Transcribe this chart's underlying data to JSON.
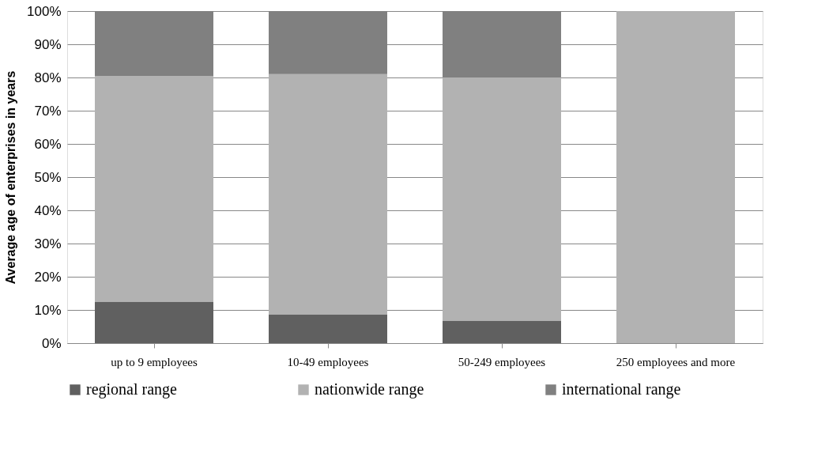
{
  "chart_data": {
    "type": "bar",
    "stacked": true,
    "ylabel": "Average age of enterprises in years",
    "categories": [
      "up to 9 employees",
      "10-49 employees",
      "50-249 employees",
      "250 employees and more"
    ],
    "series": [
      {
        "name": "regional range",
        "color": "#606060",
        "values": [
          12.5,
          8.6,
          6.8,
          0
        ]
      },
      {
        "name": "nationwide range",
        "color": "#b2b2b2",
        "values": [
          68,
          72.4,
          73.2,
          100
        ]
      },
      {
        "name": "international range",
        "color": "#808080",
        "values": [
          19.5,
          19,
          20,
          0
        ]
      }
    ],
    "ylim": [
      0,
      100
    ],
    "yticks": [
      {
        "value": 0,
        "label": "0%"
      },
      {
        "value": 10,
        "label": "10%"
      },
      {
        "value": 20,
        "label": "20%"
      },
      {
        "value": 30,
        "label": "30%"
      },
      {
        "value": 40,
        "label": "40%"
      },
      {
        "value": 50,
        "label": "50%"
      },
      {
        "value": 60,
        "label": "60%"
      },
      {
        "value": 70,
        "label": "70%"
      },
      {
        "value": 80,
        "label": "80%"
      },
      {
        "value": 90,
        "label": "90%"
      },
      {
        "value": 100,
        "label": "100%"
      }
    ],
    "grid": "y",
    "legend": "bottom"
  }
}
